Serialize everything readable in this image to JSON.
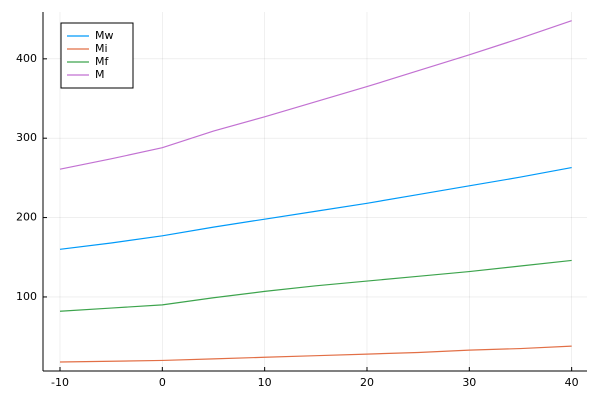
{
  "chart_data": {
    "type": "line",
    "x": [
      -10,
      -5,
      0,
      5,
      10,
      15,
      20,
      25,
      30,
      35,
      40
    ],
    "series": [
      {
        "name": "Mw",
        "color": "#009af9",
        "values": [
          160,
          168,
          177,
          188,
          198,
          208,
          218,
          229,
          240,
          251,
          263
        ]
      },
      {
        "name": "Mi",
        "color": "#e26f46",
        "values": [
          18,
          19,
          20,
          22,
          24,
          26,
          28,
          30,
          33,
          35,
          38
        ]
      },
      {
        "name": "Mf",
        "color": "#3da44d",
        "values": [
          82,
          86,
          90,
          99,
          107,
          114,
          120,
          126,
          132,
          139,
          146
        ]
      },
      {
        "name": "M",
        "color": "#c271d2",
        "values": [
          261,
          274,
          288,
          309,
          327,
          346,
          365,
          385,
          405,
          426,
          448
        ]
      }
    ],
    "xlim": [
      -11.66,
      41.5
    ],
    "ylim": [
      6.7,
      459
    ],
    "xticks": [
      -10,
      0,
      10,
      20,
      30,
      40
    ],
    "yticks": [
      100,
      200,
      300,
      400
    ],
    "grid": true,
    "legend": "top-left"
  }
}
